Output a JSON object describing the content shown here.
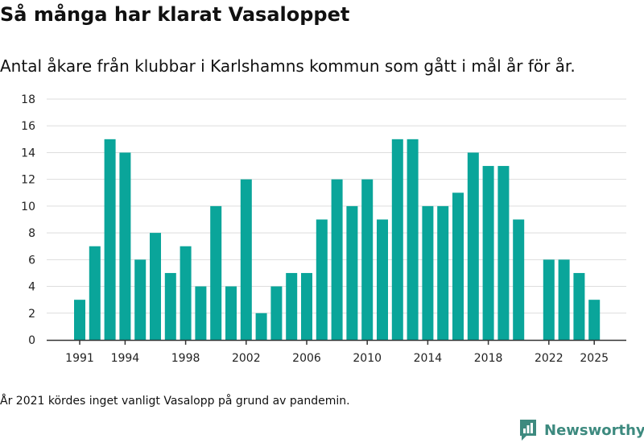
{
  "title": "Så många har klarat Vasaloppet",
  "subtitle": "Antal åkare från klubbar i Karlshamns kommun som gått i mål år för år.",
  "note": "År 2021 kördes inget vanligt Vasalopp på grund av pandemin.",
  "brand": {
    "name": "Newsworthy",
    "icon": "newsworthy-logo-icon",
    "color": "#3d8a7f"
  },
  "colors": {
    "bar": "#0aa59a",
    "grid": "#dddddd",
    "axis": "#333333",
    "text": "#222222"
  },
  "chart_data": {
    "type": "bar",
    "title": "",
    "xlabel": "",
    "ylabel": "",
    "categories": [
      "1991",
      "1992",
      "1993",
      "1994",
      "1995",
      "1996",
      "1997",
      "1998",
      "1999",
      "2000",
      "2001",
      "2002",
      "2003",
      "2004",
      "2005",
      "2006",
      "2007",
      "2008",
      "2009",
      "2010",
      "2011",
      "2012",
      "2013",
      "2014",
      "2015",
      "2016",
      "2017",
      "2018",
      "2019",
      "2020",
      "2021",
      "2022",
      "2023",
      "2024",
      "2025"
    ],
    "values": [
      3,
      7,
      15,
      14,
      6,
      8,
      5,
      7,
      4,
      10,
      4,
      12,
      2,
      4,
      5,
      5,
      9,
      12,
      10,
      12,
      9,
      15,
      15,
      10,
      10,
      11,
      14,
      13,
      13,
      9,
      null,
      6,
      6,
      5,
      3
    ],
    "x_tick_labels": [
      "1991",
      "1994",
      "1998",
      "2002",
      "2006",
      "2010",
      "2014",
      "2018",
      "2022",
      "2025"
    ],
    "y_ticks": [
      0,
      2,
      4,
      6,
      8,
      10,
      12,
      14,
      16,
      18
    ],
    "ylim": [
      0,
      18
    ],
    "grid": true,
    "legend": "none"
  }
}
